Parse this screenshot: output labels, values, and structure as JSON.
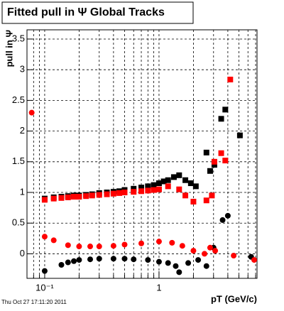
{
  "chart_data": {
    "type": "scatter",
    "title": "Fitted pull in  Ψ   Global Tracks",
    "y_label": "pull in Ψ",
    "x_label": "pT (GeV/c)",
    "timestamp": "Thu Oct 27 17:11:20 2011",
    "log_x": true,
    "grid": true,
    "xlim": [
      0.07,
      7.2
    ],
    "ylim": [
      -0.4,
      3.65
    ],
    "xticks": [
      {
        "value": 0.1,
        "label": "10⁻¹"
      },
      1
    ],
    "xminorticks": [
      0.08,
      0.09,
      0.2,
      0.3,
      0.4,
      0.5,
      0.6,
      0.7,
      0.8,
      0.9,
      2,
      3,
      4,
      5,
      6,
      7
    ],
    "yticks": [
      0,
      0.5,
      1,
      1.5,
      2,
      2.5,
      3,
      3.5
    ],
    "series": [
      {
        "color": "#000000",
        "marker": "square",
        "x": [
          0.1,
          0.12,
          0.14,
          0.16,
          0.18,
          0.2,
          0.23,
          0.26,
          0.3,
          0.35,
          0.4,
          0.45,
          0.5,
          0.6,
          0.7,
          0.8,
          0.9,
          1.0,
          1.1,
          1.2,
          1.35,
          1.5,
          1.7,
          1.9,
          2.1,
          2.6,
          2.8,
          3.05,
          3.5,
          3.8,
          5.1
        ],
        "values": [
          0.9,
          0.92,
          0.93,
          0.94,
          0.95,
          0.95,
          0.96,
          0.97,
          0.99,
          1.0,
          1.01,
          1.02,
          1.04,
          1.06,
          1.08,
          1.1,
          1.12,
          1.15,
          1.18,
          1.2,
          1.25,
          1.28,
          1.2,
          1.15,
          1.1,
          1.65,
          1.35,
          1.45,
          2.2,
          2.35,
          1.93
        ]
      },
      {
        "color": "#ff0000",
        "marker": "square",
        "x": [
          0.1,
          0.12,
          0.14,
          0.16,
          0.18,
          0.2,
          0.23,
          0.26,
          0.3,
          0.35,
          0.4,
          0.45,
          0.5,
          0.6,
          0.7,
          0.8,
          0.9,
          1.0,
          1.2,
          1.5,
          1.7,
          2.0,
          2.6,
          2.9,
          3.05,
          3.5,
          3.8,
          4.2
        ],
        "values": [
          0.88,
          0.9,
          0.91,
          0.92,
          0.93,
          0.93,
          0.94,
          0.95,
          0.96,
          0.97,
          0.98,
          0.99,
          1.0,
          1.01,
          1.02,
          1.03,
          1.04,
          1.05,
          1.1,
          1.05,
          0.95,
          0.85,
          0.87,
          0.95,
          1.5,
          1.64,
          1.52,
          2.84
        ]
      },
      {
        "color": "#000000",
        "marker": "circle",
        "x": [
          0.1,
          0.14,
          0.16,
          0.18,
          0.2,
          0.25,
          0.3,
          0.4,
          0.5,
          0.6,
          0.8,
          1.0,
          1.2,
          1.4,
          1.5,
          1.8,
          2.2,
          2.6,
          3.0,
          3.6,
          4.0,
          6.4
        ],
        "values": [
          -0.28,
          -0.18,
          -0.14,
          -0.12,
          -0.1,
          -0.09,
          -0.08,
          -0.08,
          -0.08,
          -0.09,
          -0.1,
          -0.13,
          -0.15,
          -0.2,
          -0.3,
          -0.15,
          -0.1,
          -0.2,
          0.1,
          0.55,
          0.62,
          -0.05
        ]
      },
      {
        "color": "#ff0000",
        "marker": "circle",
        "x": [
          0.077,
          0.1,
          0.12,
          0.16,
          0.2,
          0.25,
          0.3,
          0.4,
          0.5,
          0.7,
          1.0,
          1.3,
          1.6,
          2.0,
          2.5,
          2.8,
          3.1,
          4.5,
          6.8
        ],
        "values": [
          2.3,
          0.28,
          0.22,
          0.14,
          0.12,
          0.12,
          0.12,
          0.13,
          0.15,
          0.17,
          0.2,
          0.18,
          0.13,
          0.05,
          0.0,
          0.1,
          0.05,
          -0.03,
          -0.1
        ]
      }
    ]
  }
}
